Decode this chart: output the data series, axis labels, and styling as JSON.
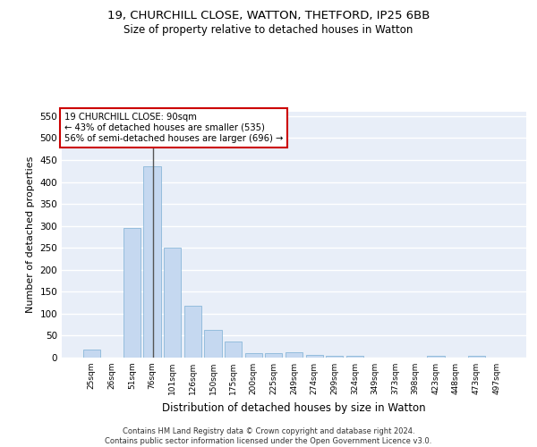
{
  "title1": "19, CHURCHILL CLOSE, WATTON, THETFORD, IP25 6BB",
  "title2": "Size of property relative to detached houses in Watton",
  "xlabel": "Distribution of detached houses by size in Watton",
  "ylabel": "Number of detached properties",
  "bar_labels": [
    "25sqm",
    "26sqm",
    "51sqm",
    "76sqm",
    "101sqm",
    "126sqm",
    "150sqm",
    "175sqm",
    "200sqm",
    "225sqm",
    "249sqm",
    "274sqm",
    "299sqm",
    "324sqm",
    "349sqm",
    "373sqm",
    "398sqm",
    "423sqm",
    "448sqm",
    "473sqm",
    "497sqm"
  ],
  "bar_values": [
    18,
    0,
    295,
    435,
    250,
    118,
    63,
    37,
    10,
    10,
    12,
    6,
    5,
    4,
    0,
    0,
    0,
    5,
    0,
    5,
    0
  ],
  "bar_color": "#c5d8f0",
  "bar_edge_color": "#7bafd4",
  "marker_line_color": "#555555",
  "annotation_text": "19 CHURCHILL CLOSE: 90sqm\n← 43% of detached houses are smaller (535)\n56% of semi-detached houses are larger (696) →",
  "annotation_box_color": "#ffffff",
  "annotation_box_edge_color": "#cc0000",
  "ylim": [
    0,
    560
  ],
  "yticks": [
    0,
    50,
    100,
    150,
    200,
    250,
    300,
    350,
    400,
    450,
    500,
    550
  ],
  "bg_color": "#e8eef8",
  "grid_color": "#ffffff",
  "footer_text": "Contains HM Land Registry data © Crown copyright and database right 2024.\nContains public sector information licensed under the Open Government Licence v3.0.",
  "title1_fontsize": 9.5,
  "title2_fontsize": 8.5,
  "xlabel_fontsize": 8.5,
  "ylabel_fontsize": 8
}
